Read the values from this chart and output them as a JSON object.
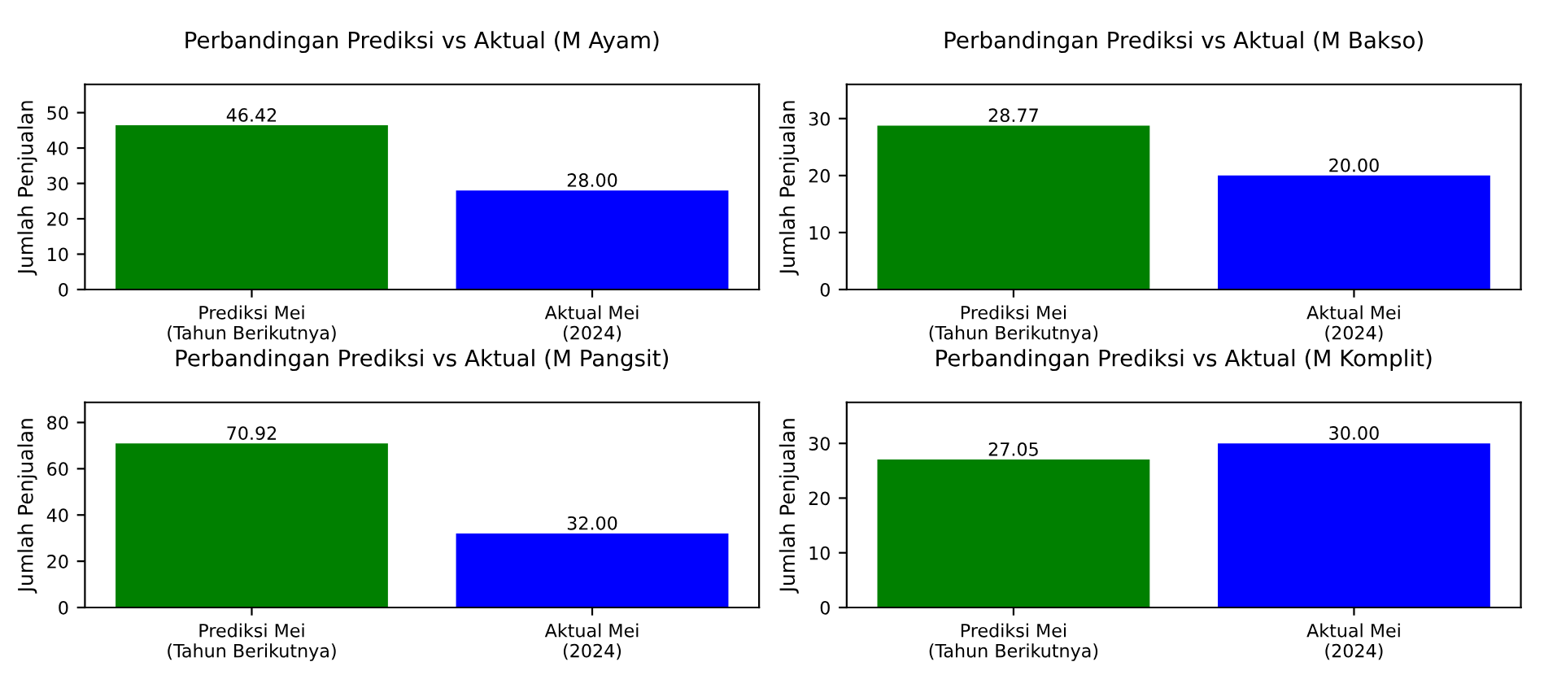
{
  "chart_data": [
    {
      "type": "bar",
      "title": "Perbandingan Prediksi vs Aktual (M Ayam)",
      "ylabel": "Jumlah Penjualan",
      "categories": [
        "Prediksi Mei\n(Tahun Berikutnya)",
        "Aktual Mei\n(2024)"
      ],
      "values": [
        46.42,
        28.0
      ],
      "colors": [
        "#008000",
        "#0000ff"
      ],
      "value_labels": [
        "46.42",
        "28.00"
      ],
      "ylim": [
        0,
        58
      ],
      "yticks": [
        0,
        10,
        20,
        30,
        40,
        50
      ]
    },
    {
      "type": "bar",
      "title": "Perbandingan Prediksi vs Aktual (M Bakso)",
      "ylabel": "Jumlah Penjualan",
      "categories": [
        "Prediksi Mei\n(Tahun Berikutnya)",
        "Aktual Mei\n(2024)"
      ],
      "values": [
        28.77,
        20.0
      ],
      "colors": [
        "#008000",
        "#0000ff"
      ],
      "value_labels": [
        "28.77",
        "20.00"
      ],
      "ylim": [
        0,
        36
      ],
      "yticks": [
        0,
        10,
        20,
        30
      ]
    },
    {
      "type": "bar",
      "title": "Perbandingan Prediksi vs Aktual (M Pangsit)",
      "ylabel": "Jumlah Penjualan",
      "categories": [
        "Prediksi Mei\n(Tahun Berikutnya)",
        "Aktual Mei\n(2024)"
      ],
      "values": [
        70.92,
        32.0
      ],
      "colors": [
        "#008000",
        "#0000ff"
      ],
      "value_labels": [
        "70.92",
        "32.00"
      ],
      "ylim": [
        0,
        88.7
      ],
      "yticks": [
        0,
        20,
        40,
        60,
        80
      ]
    },
    {
      "type": "bar",
      "title": "Perbandingan Prediksi vs Aktual (M Komplit)",
      "ylabel": "Jumlah Penjualan",
      "categories": [
        "Prediksi Mei\n(Tahun Berikutnya)",
        "Aktual Mei\n(2024)"
      ],
      "values": [
        27.05,
        30.0
      ],
      "colors": [
        "#008000",
        "#0000ff"
      ],
      "value_labels": [
        "27.05",
        "30.00"
      ],
      "ylim": [
        0,
        37.5
      ],
      "yticks": [
        0,
        10,
        20,
        30
      ]
    }
  ]
}
